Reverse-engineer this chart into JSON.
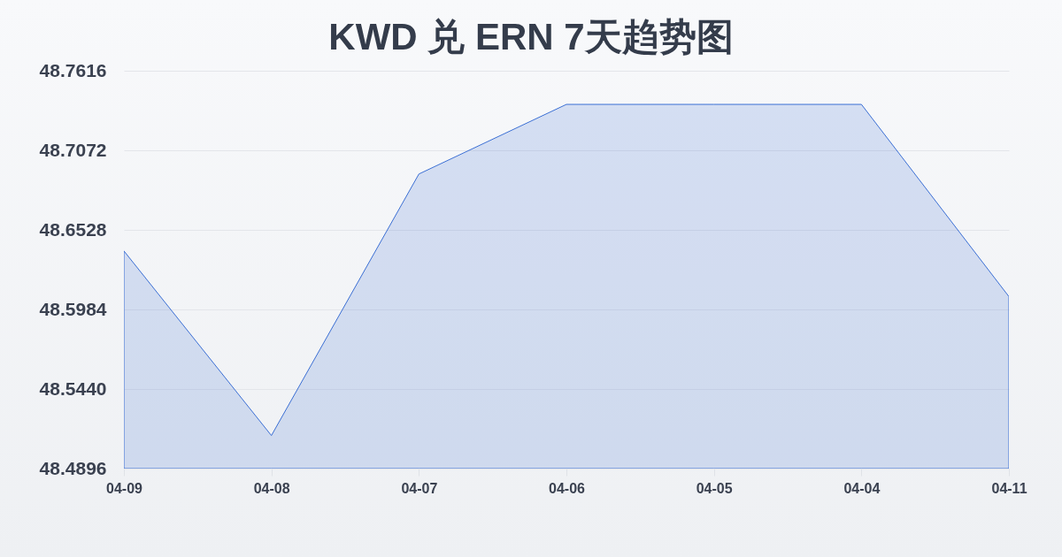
{
  "chart_data": {
    "type": "area",
    "title": "KWD 兑 ERN 7天趋势图",
    "categories": [
      "04-09",
      "04-08",
      "04-07",
      "04-06",
      "04-05",
      "04-04",
      "04-11"
    ],
    "series": [
      {
        "color": "#3b6fd4",
        "values": [
          48.6384,
          48.5122,
          48.691,
          48.7386,
          48.7386,
          48.7386,
          48.6072
        ]
      }
    ],
    "ylim": [
      48.4896,
      48.7616
    ],
    "yticks": [
      48.4896,
      {
        "value": 48.544,
        "label": "48.5440"
      },
      48.5984,
      48.6528,
      48.7072,
      48.7616
    ],
    "grid": "y"
  }
}
